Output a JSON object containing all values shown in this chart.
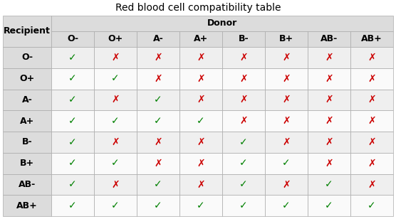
{
  "title": "Red blood cell compatibility table",
  "donor_header": "Donor",
  "recipient_header": "Recipient",
  "donors": [
    "O-",
    "O+",
    "A-",
    "A+",
    "B-",
    "B+",
    "AB-",
    "AB+"
  ],
  "recipients": [
    "O-",
    "O+",
    "A-",
    "A+",
    "B-",
    "B+",
    "AB-",
    "AB+"
  ],
  "compatibility": [
    [
      1,
      0,
      0,
      0,
      0,
      0,
      0,
      0
    ],
    [
      1,
      1,
      0,
      0,
      0,
      0,
      0,
      0
    ],
    [
      1,
      0,
      1,
      0,
      0,
      0,
      0,
      0
    ],
    [
      1,
      1,
      1,
      1,
      0,
      0,
      0,
      0
    ],
    [
      1,
      0,
      0,
      0,
      1,
      0,
      0,
      0
    ],
    [
      1,
      1,
      0,
      0,
      1,
      1,
      0,
      0
    ],
    [
      1,
      0,
      1,
      0,
      1,
      0,
      1,
      0
    ],
    [
      1,
      1,
      1,
      1,
      1,
      1,
      1,
      1
    ]
  ],
  "check_color": "#008000",
  "cross_color": "#CC0000",
  "header_bg": "#DCDCDC",
  "row_bg_even": "#EFEFEF",
  "row_bg_odd": "#FAFAFA",
  "title_fontsize": 10,
  "cell_fontsize": 10,
  "label_fontsize": 9,
  "grid_color": "#AAAAAA",
  "fig_width": 5.56,
  "fig_height": 3.08,
  "dpi": 100
}
